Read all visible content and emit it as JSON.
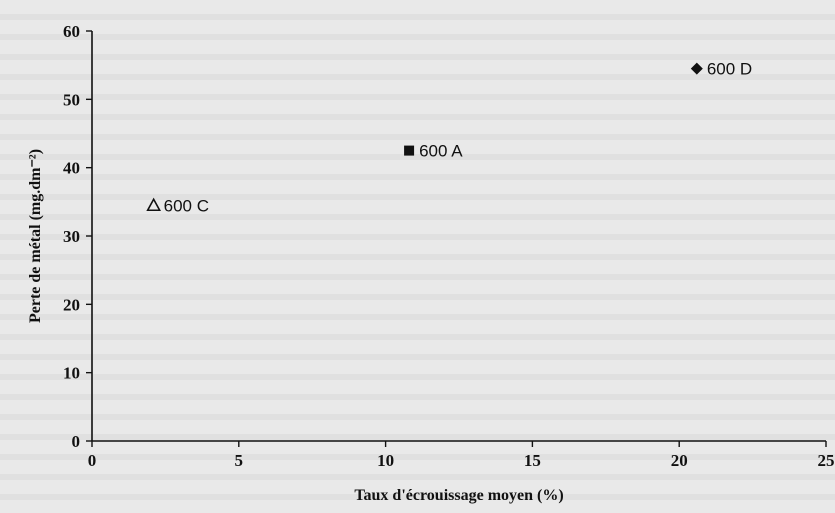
{
  "chart_data": {
    "type": "scatter",
    "xlabel": "Taux d'écrouissage moyen (%)",
    "ylabel": "Perte de métal (mg.dm⁻²)",
    "xlim": [
      0,
      25
    ],
    "ylim": [
      0,
      60
    ],
    "xticks": [
      0,
      5,
      10,
      15,
      20,
      25
    ],
    "yticks": [
      0,
      10,
      20,
      30,
      40,
      50,
      60
    ],
    "grid": false,
    "points": [
      {
        "label": "600 A",
        "x": 10.8,
        "y": 42.5,
        "marker": "square-filled"
      },
      {
        "label": "600 C",
        "x": 2.1,
        "y": 34.5,
        "marker": "triangle-open"
      },
      {
        "label": "600 D",
        "x": 20.6,
        "y": 54.5,
        "marker": "diamond-filled"
      }
    ]
  }
}
